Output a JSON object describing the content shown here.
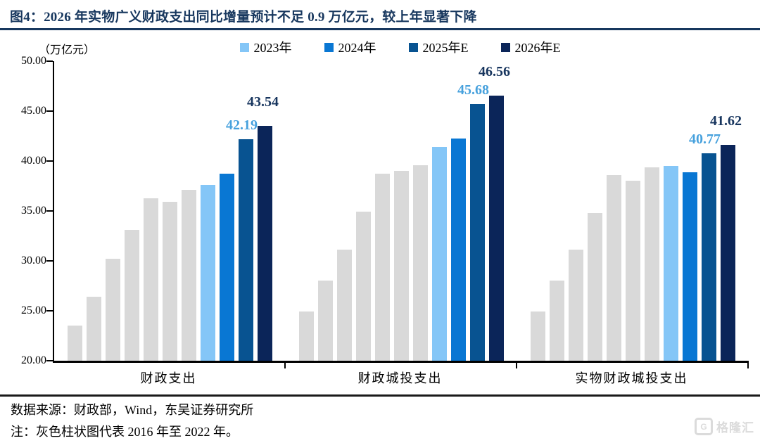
{
  "header": {
    "title": "图4：2026 年实物广义财政支出同比增量预计不足 0.9 万亿元，较上年显著下降"
  },
  "footer": {
    "source": "数据来源：财政部，Wind，东吴证券研究所",
    "note": "注：灰色柱状图代表 2016 年至 2022 年。",
    "watermark": "格隆汇",
    "watermark_icon": "G"
  },
  "colors": {
    "title_navy": "#17375E",
    "gray_bar": "#D9D9D9",
    "bar_2023": "#84C6F7",
    "bar_2024": "#0977D3",
    "bar_2025e": "#085391",
    "bar_2026e": "#0B2559",
    "label_2025e": "#47A1DD",
    "label_2026e": "#17355E"
  },
  "chart_data": {
    "type": "bar",
    "title": "图4：2026 年实物广义财政支出同比增量预计不足 0.9 万亿元，较上年显著下降",
    "unit_label": "（万亿元）",
    "ylim": [
      20,
      50
    ],
    "yticks": [
      "50.00",
      "45.00",
      "40.00",
      "35.00",
      "30.00",
      "25.00",
      "20.00"
    ],
    "grid": false,
    "legend_position": "top-center",
    "legend": [
      "2023年",
      "2024年",
      "2025年E",
      "2026年E"
    ],
    "series_colors": [
      "#84C6F7",
      "#0977D3",
      "#085391",
      "#0B2559"
    ],
    "gray_color": "#D9D9D9",
    "gray_years_note": "灰色柱状图代表 2016 年至 2022 年",
    "categories": [
      "财政支出",
      "财政城投支出",
      "实物财政城投支出"
    ],
    "groups": [
      {
        "label": "财政支出",
        "gray_values": [
          23.5,
          26.4,
          30.2,
          33.1,
          36.3,
          35.9,
          37.1
        ],
        "series_values": [
          37.6,
          38.7,
          42.19,
          43.54
        ],
        "shown_labels": [
          "42.19",
          "43.54"
        ]
      },
      {
        "label": "财政城投支出",
        "gray_values": [
          24.9,
          28.0,
          31.1,
          34.9,
          38.7,
          39.0,
          39.6
        ],
        "series_values": [
          41.4,
          42.25,
          45.68,
          46.56
        ],
        "shown_labels": [
          "45.68",
          "46.56"
        ]
      },
      {
        "label": "实物财政城投支出",
        "gray_values": [
          24.9,
          28.0,
          31.1,
          34.8,
          38.6,
          38.0,
          39.4
        ],
        "series_values": [
          39.5,
          38.9,
          40.77,
          41.62
        ],
        "shown_labels": [
          "40.77",
          "41.62"
        ]
      }
    ]
  }
}
